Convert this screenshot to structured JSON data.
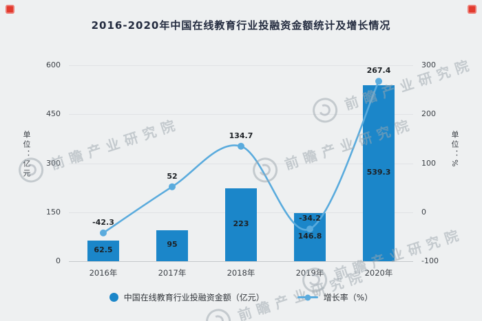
{
  "chart_data": {
    "type": "bar+line",
    "title": "2016-2020年中国在线教育行业投融资金额统计及增长情况",
    "categories": [
      "2016年",
      "2017年",
      "2018年",
      "2019年",
      "2020年"
    ],
    "series": [
      {
        "name": "中国在线教育行业投融资金额（亿元）",
        "type": "bar",
        "axis": "left",
        "color": "#1b86c9",
        "values": [
          62.5,
          95,
          223,
          146.8,
          539.3
        ],
        "labels": [
          "62.5",
          "95",
          "223",
          "146.8",
          "539.3"
        ]
      },
      {
        "name": "增长率（%）",
        "type": "line",
        "axis": "right",
        "color": "#5aabdd",
        "values": [
          -42.3,
          52,
          134.7,
          -34.2,
          267.4
        ],
        "labels": [
          "-42.3",
          "52",
          "134.7",
          "-34.2",
          "267.4"
        ]
      }
    ],
    "left_axis": {
      "label": "单位：亿元",
      "ticks": [
        600,
        450,
        300,
        150,
        0
      ],
      "lim": [
        0,
        600
      ]
    },
    "right_axis": {
      "label": "单位：%",
      "ticks": [
        300,
        200,
        100,
        0,
        -100
      ],
      "lim": [
        -100,
        300
      ]
    },
    "grid": true,
    "legend_position": "bottom"
  },
  "legend": [
    {
      "label": "中国在线教育行业投融资金额（亿元）",
      "marker": "circle"
    },
    {
      "label": "增长率（%）",
      "marker": "line-dot"
    }
  ],
  "watermark": {
    "text": "前瞻产业研究院"
  },
  "colors": {
    "background": "#eef0f1",
    "bar": "#1b86c9",
    "line": "#5aabdd",
    "title_text": "#232b3f",
    "axis_text": "#3a3f45",
    "grid": "#e0e2e5",
    "watermark": "#9ea6af",
    "corner_mark": "#e23a2e"
  }
}
